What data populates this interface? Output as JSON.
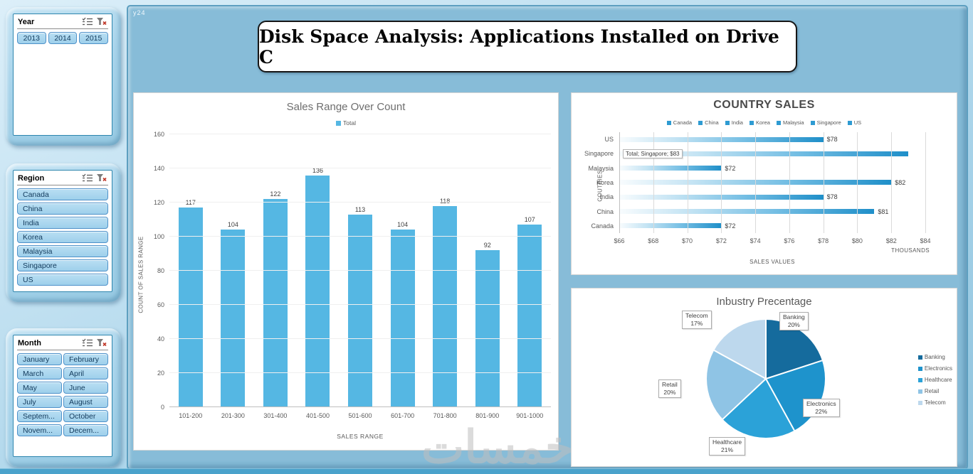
{
  "page": {
    "corner_text": "y24",
    "watermark": "خمسات"
  },
  "header": {
    "title": "Disk Space Analysis: Applications Installed on Drive C"
  },
  "slicers": [
    {
      "title": "Year",
      "items": [
        "2013",
        "2014",
        "2015"
      ]
    },
    {
      "title": "Region",
      "items": [
        "Canada",
        "China",
        "India",
        "Korea",
        "Malaysia",
        "Singapore",
        "US"
      ]
    },
    {
      "title": "Month",
      "items": [
        "January",
        "February",
        "March",
        "April",
        "May",
        "June",
        "July",
        "August",
        "Septem...",
        "October",
        "Novem...",
        "Decem..."
      ]
    }
  ],
  "chart_data": [
    {
      "type": "bar",
      "title": "Sales Range Over Count",
      "legend": [
        "Total"
      ],
      "categories": [
        "101-200",
        "201-300",
        "301-400",
        "401-500",
        "501-600",
        "601-700",
        "701-800",
        "801-900",
        "901-1000"
      ],
      "values": [
        117,
        104,
        122,
        136,
        113,
        104,
        118,
        92,
        107
      ],
      "xlabel": "SALES RANGE",
      "ylabel": "COUNT OF SALES RANGE",
      "ylim": [
        0,
        160
      ],
      "ytick_step": 20,
      "bar_color": "#55B7E3",
      "grid": true,
      "legend_position": "top"
    },
    {
      "type": "bar",
      "orientation": "horizontal",
      "title": "COUNTRY SALES",
      "series_name": "Total",
      "legend": [
        "Canada",
        "China",
        "India",
        "Korea",
        "Malaysia",
        "Singapore",
        "US"
      ],
      "categories": [
        "US",
        "Singapore",
        "Malaysia",
        "Korea",
        "India",
        "China",
        "Canada"
      ],
      "values": [
        78,
        83,
        72,
        82,
        78,
        81,
        72
      ],
      "value_labels": [
        "$78",
        "Total; Singapore; $83",
        "$72",
        "$82",
        "$78",
        "$81",
        "$72"
      ],
      "callout_index": 1,
      "xlim": [
        66,
        84
      ],
      "xtick_step": 2,
      "xtick_prefix": "$",
      "axis_unit": "THOUSANDS",
      "xlabel": "SALES VALUES",
      "ylabel": "COUTRIES",
      "bar_color": "#1F8FC9",
      "grid": true,
      "legend_position": "top"
    },
    {
      "type": "pie",
      "title": "Inbustry Precentage",
      "slices": [
        {
          "name": "Banking",
          "pct": 20,
          "color": "#156B9D"
        },
        {
          "name": "Electronics",
          "pct": 22,
          "color": "#1E93CC"
        },
        {
          "name": "Healthcare",
          "pct": 21,
          "color": "#2BA2D8"
        },
        {
          "name": "Retail",
          "pct": 20,
          "color": "#8FC4E5"
        },
        {
          "name": "Telecom",
          "pct": 17,
          "color": "#BDD8ED"
        }
      ],
      "legend_position": "right"
    }
  ]
}
